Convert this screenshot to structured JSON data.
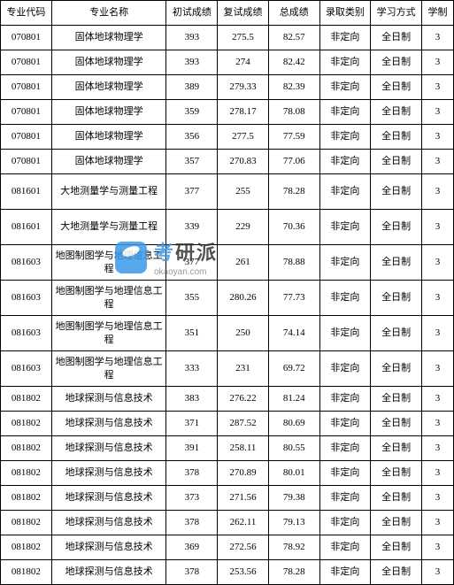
{
  "table": {
    "columns": [
      {
        "key": "code",
        "label": "专业代码",
        "class": "col-code"
      },
      {
        "key": "name",
        "label": "专业名称",
        "class": "col-name"
      },
      {
        "key": "prelim",
        "label": "初试成绩",
        "class": "col-prelim"
      },
      {
        "key": "retest",
        "label": "复试成绩",
        "class": "col-retest"
      },
      {
        "key": "total",
        "label": "总成绩",
        "class": "col-total"
      },
      {
        "key": "admit",
        "label": "录取类别",
        "class": "col-admit"
      },
      {
        "key": "mode",
        "label": "学习方式",
        "class": "col-mode"
      },
      {
        "key": "duration",
        "label": "学制",
        "class": "col-duration"
      }
    ],
    "rows": [
      {
        "code": "070801",
        "name": "固体地球物理学",
        "prelim": "393",
        "retest": "275.5",
        "total": "82.57",
        "admit": "非定向",
        "mode": "全日制",
        "duration": "3",
        "multi": false
      },
      {
        "code": "070801",
        "name": "固体地球物理学",
        "prelim": "393",
        "retest": "274",
        "total": "82.42",
        "admit": "非定向",
        "mode": "全日制",
        "duration": "3",
        "multi": false
      },
      {
        "code": "070801",
        "name": "固体地球物理学",
        "prelim": "389",
        "retest": "279.33",
        "total": "82.39",
        "admit": "非定向",
        "mode": "全日制",
        "duration": "3",
        "multi": false
      },
      {
        "code": "070801",
        "name": "固体地球物理学",
        "prelim": "359",
        "retest": "278.17",
        "total": "78.08",
        "admit": "非定向",
        "mode": "全日制",
        "duration": "3",
        "multi": false
      },
      {
        "code": "070801",
        "name": "固体地球物理学",
        "prelim": "356",
        "retest": "277.5",
        "total": "77.59",
        "admit": "非定向",
        "mode": "全日制",
        "duration": "3",
        "multi": false
      },
      {
        "code": "070801",
        "name": "固体地球物理学",
        "prelim": "357",
        "retest": "270.83",
        "total": "77.06",
        "admit": "非定向",
        "mode": "全日制",
        "duration": "3",
        "multi": false
      },
      {
        "code": "081601",
        "name": "大地测量学与测量工程",
        "prelim": "377",
        "retest": "255",
        "total": "78.28",
        "admit": "非定向",
        "mode": "全日制",
        "duration": "3",
        "multi": true
      },
      {
        "code": "081601",
        "name": "大地测量学与测量工程",
        "prelim": "339",
        "retest": "229",
        "total": "70.36",
        "admit": "非定向",
        "mode": "全日制",
        "duration": "3",
        "multi": true
      },
      {
        "code": "081603",
        "name": "地图制图学与地理信息工程",
        "prelim": "377",
        "retest": "261",
        "total": "78.88",
        "admit": "非定向",
        "mode": "全日制",
        "duration": "3",
        "multi": true
      },
      {
        "code": "081603",
        "name": "地图制图学与地理信息工程",
        "prelim": "355",
        "retest": "280.26",
        "total": "77.73",
        "admit": "非定向",
        "mode": "全日制",
        "duration": "3",
        "multi": true
      },
      {
        "code": "081603",
        "name": "地图制图学与地理信息工程",
        "prelim": "351",
        "retest": "250",
        "total": "74.14",
        "admit": "非定向",
        "mode": "全日制",
        "duration": "3",
        "multi": true
      },
      {
        "code": "081603",
        "name": "地图制图学与地理信息工程",
        "prelim": "333",
        "retest": "231",
        "total": "69.72",
        "admit": "非定向",
        "mode": "全日制",
        "duration": "3",
        "multi": true
      },
      {
        "code": "081802",
        "name": "地球探测与信息技术",
        "prelim": "383",
        "retest": "276.22",
        "total": "81.24",
        "admit": "非定向",
        "mode": "全日制",
        "duration": "3",
        "multi": false
      },
      {
        "code": "081802",
        "name": "地球探测与信息技术",
        "prelim": "371",
        "retest": "287.52",
        "total": "80.69",
        "admit": "非定向",
        "mode": "全日制",
        "duration": "3",
        "multi": false
      },
      {
        "code": "081802",
        "name": "地球探测与信息技术",
        "prelim": "391",
        "retest": "258.11",
        "total": "80.55",
        "admit": "非定向",
        "mode": "全日制",
        "duration": "3",
        "multi": false
      },
      {
        "code": "081802",
        "name": "地球探测与信息技术",
        "prelim": "378",
        "retest": "270.89",
        "total": "80.01",
        "admit": "非定向",
        "mode": "全日制",
        "duration": "3",
        "multi": false
      },
      {
        "code": "081802",
        "name": "地球探测与信息技术",
        "prelim": "373",
        "retest": "271.56",
        "total": "79.38",
        "admit": "非定向",
        "mode": "全日制",
        "duration": "3",
        "multi": false
      },
      {
        "code": "081802",
        "name": "地球探测与信息技术",
        "prelim": "378",
        "retest": "262.11",
        "total": "79.13",
        "admit": "非定向",
        "mode": "全日制",
        "duration": "3",
        "multi": false
      },
      {
        "code": "081802",
        "name": "地球探测与信息技术",
        "prelim": "369",
        "retest": "272.56",
        "total": "78.92",
        "admit": "非定向",
        "mode": "全日制",
        "duration": "3",
        "multi": false
      },
      {
        "code": "081802",
        "name": "地球探测与信息技术",
        "prelim": "378",
        "retest": "253.56",
        "total": "78.28",
        "admit": "非定向",
        "mode": "全日制",
        "duration": "3",
        "multi": false
      }
    ],
    "border_color": "#000000",
    "background_color": "#ffffff",
    "font_size": 11,
    "font_family": "SimSun"
  },
  "watermark": {
    "brand_first": "考",
    "brand_rest": "研派",
    "url": "okaoyan.com",
    "icon_color": "#3b9ae8",
    "text_color": "#333333",
    "url_color": "#888888"
  }
}
